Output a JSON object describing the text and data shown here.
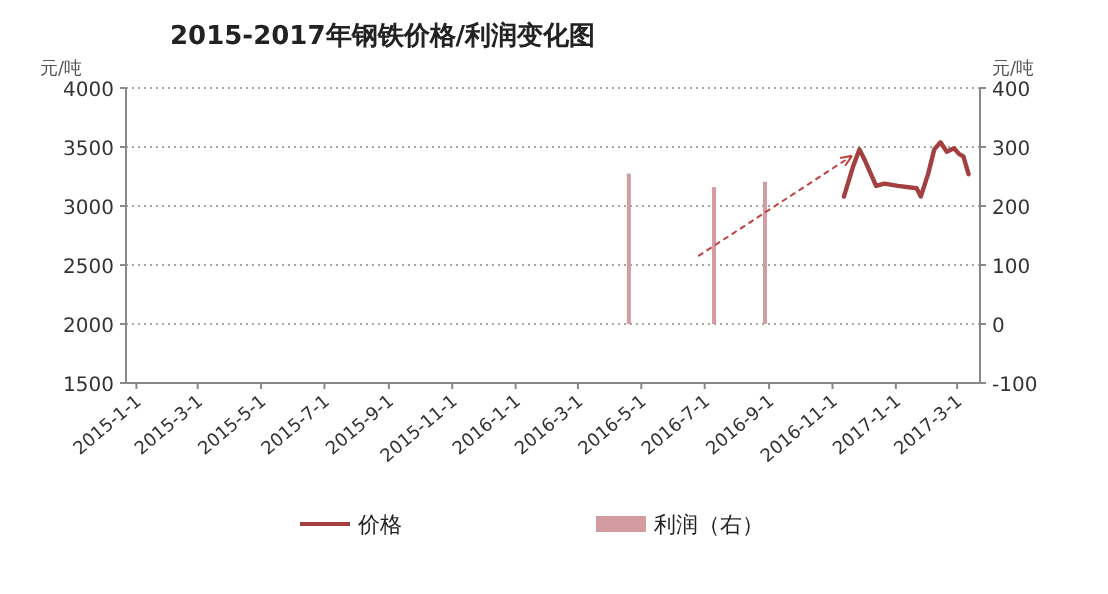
{
  "chart_data": {
    "type": "line",
    "title": "2015-2017年钢铁价格/利润变化图",
    "ylabel": "元/吨",
    "y2label": "元/吨",
    "xlim": [
      "2014-12-22",
      "2017-03-23"
    ],
    "xticks": [
      {
        "value": "2015-01-01",
        "label": "2015-1-1"
      },
      {
        "value": "2015-03-01",
        "label": "2015-3-1"
      },
      {
        "value": "2015-05-01",
        "label": "2015-5-1"
      },
      {
        "value": "2015-07-01",
        "label": "2015-7-1"
      },
      {
        "value": "2015-09-01",
        "label": "2015-9-1"
      },
      {
        "value": "2015-11-01",
        "label": "2015-11-1"
      },
      {
        "value": "2016-01-01",
        "label": "2016-1-1"
      },
      {
        "value": "2016-03-01",
        "label": "2016-3-1"
      },
      {
        "value": "2016-05-01",
        "label": "2016-5-1"
      },
      {
        "value": "2016-07-01",
        "label": "2016-7-1"
      },
      {
        "value": "2016-09-01",
        "label": "2016-9-1"
      },
      {
        "value": "2016-11-01",
        "label": "2016-11-1"
      },
      {
        "value": "2017-01-01",
        "label": "2017-1-1"
      },
      {
        "value": "2017-03-01",
        "label": "2017-3-1"
      }
    ],
    "ylim": [
      1500,
      4000
    ],
    "yticks": [
      1500,
      2000,
      2500,
      3000,
      3500,
      4000
    ],
    "y2lim": [
      -100,
      400
    ],
    "y2ticks": [
      -100,
      0,
      100,
      200,
      300,
      400
    ],
    "grid": "y",
    "legend": "bottom",
    "series": [
      {
        "name": "价格",
        "color": "#a3403f",
        "x": [
          "2016-11-12",
          "2016-11-21",
          "2016-11-27",
          "2016-12-02",
          "2016-12-08",
          "2016-12-13",
          "2016-12-21",
          "2017-01-03",
          "2017-01-21",
          "2017-01-25",
          "2017-02-01",
          "2017-02-07",
          "2017-02-13",
          "2017-02-19",
          "2017-02-26",
          "2017-03-03",
          "2017-03-07",
          "2017-03-12"
        ],
        "values": [
          3080,
          3340,
          3480,
          3390,
          3270,
          3170,
          3190,
          3170,
          3150,
          3080,
          3270,
          3480,
          3540,
          3460,
          3490,
          3440,
          3420,
          3270
        ]
      },
      {
        "name": "利润（右）",
        "type": "bar",
        "axis": "y2",
        "color": "#d49ca0",
        "x": [
          "2016-04-19",
          "2016-07-10",
          "2016-08-28"
        ],
        "values": [
          255,
          232,
          241
        ]
      }
    ]
  }
}
